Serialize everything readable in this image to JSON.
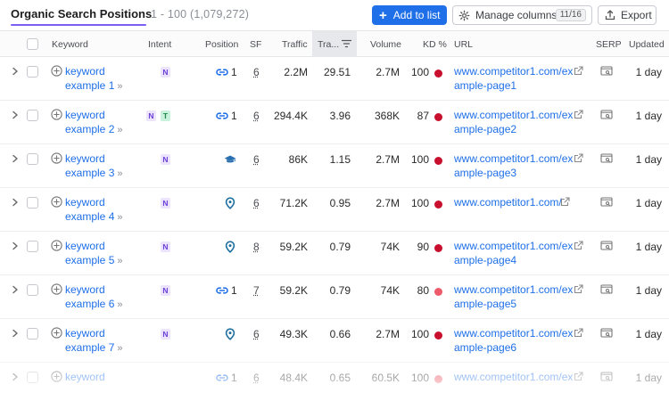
{
  "header": {
    "title": "Organic Search Positions",
    "range": "1 - 100 (1,079,272)",
    "add_to_list": "Add to list",
    "manage_columns": "Manage columns",
    "columns_count": "11/16",
    "export": "Export"
  },
  "columns": {
    "keyword": "Keyword",
    "intent": "Intent",
    "position": "Position",
    "sf": "SF",
    "traffic": "Traffic",
    "traffic_pct": "Tra...",
    "volume": "Volume",
    "kd": "KD %",
    "url": "URL",
    "serp": "SERP",
    "updated": "Updated"
  },
  "colors": {
    "accent": "#1e6fe8",
    "title_underline": "#7b5cf5",
    "kd_hard": "#c8102e",
    "kd_medium": "#ef5a6a"
  },
  "rows": [
    {
      "kw1": "keyword",
      "kw2": "example 1",
      "intent": [
        "N"
      ],
      "pos_icon": "link-icon",
      "position": "1",
      "sf": "6",
      "traffic": "2.2M",
      "traffic_pct": "29.51",
      "volume": "2.7M",
      "kd": "100",
      "kd_color": "#c8102e",
      "url1": "www.competitor1.com/ex",
      "url2": "ample-page1",
      "updated": "1 day"
    },
    {
      "kw1": "keyword",
      "kw2": "example 2",
      "intent": [
        "N",
        "T"
      ],
      "pos_icon": "link-icon",
      "position": "1",
      "sf": "6",
      "traffic": "294.4K",
      "traffic_pct": "3.96",
      "volume": "368K",
      "kd": "87",
      "kd_color": "#c8102e",
      "url1": "www.competitor1.com/ex",
      "url2": "ample-page2",
      "updated": "1 day"
    },
    {
      "kw1": "keyword",
      "kw2": "example 3",
      "intent": [
        "N"
      ],
      "pos_icon": "graduation-cap-icon",
      "position": "",
      "sf": "6",
      "traffic": "86K",
      "traffic_pct": "1.15",
      "volume": "2.7M",
      "kd": "100",
      "kd_color": "#c8102e",
      "url1": "www.competitor1.com/ex",
      "url2": "ample-page3",
      "updated": "1 day"
    },
    {
      "kw1": "keyword",
      "kw2": "example 4",
      "intent": [
        "N"
      ],
      "pos_icon": "location-pin-icon",
      "position": "",
      "sf": "6",
      "traffic": "71.2K",
      "traffic_pct": "0.95",
      "volume": "2.7M",
      "kd": "100",
      "kd_color": "#c8102e",
      "url1": "www.competitor1.com/",
      "url2": "",
      "updated": "1 day"
    },
    {
      "kw1": "keyword",
      "kw2": "example 5",
      "intent": [
        "N"
      ],
      "pos_icon": "location-pin-icon",
      "position": "",
      "sf": "8",
      "traffic": "59.2K",
      "traffic_pct": "0.79",
      "volume": "74K",
      "kd": "90",
      "kd_color": "#c8102e",
      "url1": "www.competitor1.com/ex",
      "url2": "ample-page4",
      "updated": "1 day"
    },
    {
      "kw1": "keyword",
      "kw2": "example 6",
      "intent": [
        "N"
      ],
      "pos_icon": "link-icon",
      "position": "1",
      "sf": "7",
      "traffic": "59.2K",
      "traffic_pct": "0.79",
      "volume": "74K",
      "kd": "80",
      "kd_color": "#ef5a6a",
      "url1": "www.competitor1.com/ex",
      "url2": "ample-page5",
      "updated": "1 day"
    },
    {
      "kw1": "keyword",
      "kw2": "example 7",
      "intent": [
        "N"
      ],
      "pos_icon": "location-pin-icon",
      "position": "",
      "sf": "6",
      "traffic": "49.3K",
      "traffic_pct": "0.66",
      "volume": "2.7M",
      "kd": "100",
      "kd_color": "#c8102e",
      "url1": "www.competitor1.com/ex",
      "url2": "ample-page6",
      "updated": "1 day"
    },
    {
      "kw1": "keyword",
      "kw2": "",
      "intent": [],
      "pos_icon": "link-icon",
      "position": "1",
      "sf": "6",
      "traffic": "48.4K",
      "traffic_pct": "0.65",
      "volume": "60.5K",
      "kd": "100",
      "kd_color": "#ef5a6a",
      "url1": "www.competitor1.com/ex",
      "url2": "",
      "updated": "1 day"
    }
  ]
}
